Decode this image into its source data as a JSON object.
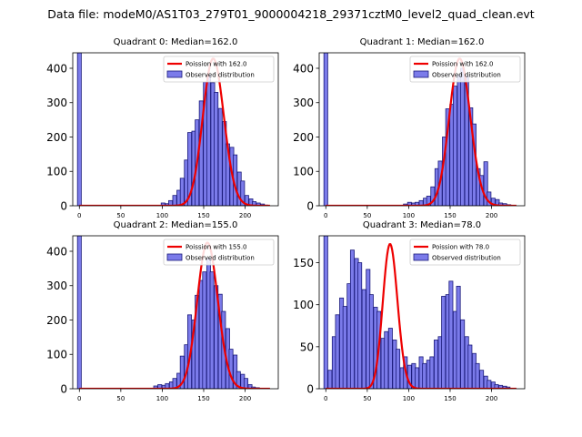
{
  "figure": {
    "suptitle": "Data file: modeM0/AS1T03_279T01_9000004218_29371cztM0_level2_quad_clean.evt"
  },
  "colors": {
    "bar_fill": "#7b7bea",
    "bar_edge": "#1a1a7a",
    "curve": "#ee0000"
  },
  "chart_data": [
    {
      "type": "bar",
      "title": "Quadrant 0: Median=162.0",
      "xticks": [
        0,
        50,
        100,
        150,
        200
      ],
      "xlim": [
        -8,
        240
      ],
      "ylim": [
        0,
        445
      ],
      "yticks": [
        0,
        100,
        200,
        300,
        400
      ],
      "bin_width": 4.6,
      "legend": {
        "curve_label": "Poission with 162.0",
        "bar_label": "Observed distribution",
        "position": "top-right"
      },
      "bins": [
        [
          0,
          445
        ],
        [
          101,
          8
        ],
        [
          106,
          6
        ],
        [
          110,
          15
        ],
        [
          115,
          30
        ],
        [
          120,
          45
        ],
        [
          124,
          80
        ],
        [
          129,
          133
        ],
        [
          133,
          213
        ],
        [
          138,
          217
        ],
        [
          142,
          250
        ],
        [
          147,
          305
        ],
        [
          152,
          360
        ],
        [
          156,
          380
        ],
        [
          161,
          358
        ],
        [
          165,
          330
        ],
        [
          170,
          283
        ],
        [
          175,
          245
        ],
        [
          179,
          180
        ],
        [
          184,
          170
        ],
        [
          188,
          148
        ],
        [
          193,
          98
        ],
        [
          197,
          72
        ],
        [
          202,
          30
        ],
        [
          207,
          20
        ],
        [
          211,
          12
        ],
        [
          216,
          8
        ],
        [
          221,
          5
        ],
        [
          225,
          2
        ]
      ],
      "poisson": {
        "lambda": 162.0,
        "peak": 428
      }
    },
    {
      "type": "bar",
      "title": "Quadrant 1: Median=162.0",
      "xticks": [
        0,
        50,
        100,
        150,
        200
      ],
      "xlim": [
        -8,
        240
      ],
      "ylim": [
        0,
        445
      ],
      "yticks": [
        0,
        100,
        200,
        300,
        400
      ],
      "bin_width": 4.6,
      "legend": {
        "curve_label": "Poission with 162.0",
        "bar_label": "Observed distribution",
        "position": "top-right"
      },
      "bins": [
        [
          0,
          445
        ],
        [
          96,
          5
        ],
        [
          101,
          10
        ],
        [
          106,
          8
        ],
        [
          110,
          10
        ],
        [
          115,
          15
        ],
        [
          120,
          22
        ],
        [
          124,
          28
        ],
        [
          129,
          55
        ],
        [
          134,
          108
        ],
        [
          138,
          130
        ],
        [
          143,
          200
        ],
        [
          147,
          282
        ],
        [
          152,
          295
        ],
        [
          156,
          348
        ],
        [
          161,
          380
        ],
        [
          165,
          400
        ],
        [
          170,
          378
        ],
        [
          175,
          285
        ],
        [
          179,
          238
        ],
        [
          184,
          108
        ],
        [
          188,
          88
        ],
        [
          193,
          128
        ],
        [
          197,
          40
        ],
        [
          202,
          22
        ],
        [
          207,
          18
        ],
        [
          211,
          8
        ],
        [
          216,
          6
        ],
        [
          221,
          3
        ]
      ],
      "poisson": {
        "lambda": 162.0,
        "peak": 428
      }
    },
    {
      "type": "bar",
      "title": "Quadrant 2: Median=155.0",
      "xticks": [
        0,
        50,
        100,
        150,
        200
      ],
      "xlim": [
        -8,
        240
      ],
      "ylim": [
        0,
        445
      ],
      "yticks": [
        0,
        100,
        200,
        300,
        400
      ],
      "bin_width": 4.6,
      "legend": {
        "curve_label": "Poission with 155.0",
        "bar_label": "Observed distribution",
        "position": "top-right"
      },
      "bins": [
        [
          0,
          445
        ],
        [
          92,
          8
        ],
        [
          97,
          12
        ],
        [
          102,
          10
        ],
        [
          106,
          15
        ],
        [
          111,
          20
        ],
        [
          115,
          30
        ],
        [
          120,
          45
        ],
        [
          124,
          95
        ],
        [
          129,
          128
        ],
        [
          133,
          215
        ],
        [
          138,
          200
        ],
        [
          142,
          272
        ],
        [
          147,
          315
        ],
        [
          151,
          340
        ],
        [
          156,
          380
        ],
        [
          160,
          340
        ],
        [
          165,
          300
        ],
        [
          170,
          275
        ],
        [
          174,
          225
        ],
        [
          179,
          175
        ],
        [
          183,
          115
        ],
        [
          188,
          98
        ],
        [
          192,
          50
        ],
        [
          197,
          42
        ],
        [
          201,
          30
        ],
        [
          206,
          12
        ],
        [
          210,
          5
        ],
        [
          215,
          3
        ]
      ],
      "poisson": {
        "lambda": 155.0,
        "peak": 425
      }
    },
    {
      "type": "bar",
      "title": "Quadrant 3: Median=78.0",
      "xticks": [
        0,
        50,
        100,
        150,
        200
      ],
      "xlim": [
        -8,
        240
      ],
      "ylim": [
        0,
        182
      ],
      "yticks": [
        0,
        50,
        100,
        150
      ],
      "bin_width": 4.6,
      "legend": {
        "curve_label": "Poission with 78.0",
        "bar_label": "Observed distribution",
        "position": "top-right"
      },
      "bins": [
        [
          0,
          182
        ],
        [
          5,
          22
        ],
        [
          10,
          62
        ],
        [
          14,
          88
        ],
        [
          19,
          108
        ],
        [
          23,
          98
        ],
        [
          28,
          125
        ],
        [
          32,
          165
        ],
        [
          37,
          155
        ],
        [
          41,
          150
        ],
        [
          46,
          118
        ],
        [
          51,
          142
        ],
        [
          55,
          112
        ],
        [
          60,
          97
        ],
        [
          64,
          92
        ],
        [
          69,
          60
        ],
        [
          73,
          68
        ],
        [
          78,
          72
        ],
        [
          83,
          58
        ],
        [
          87,
          47
        ],
        [
          92,
          25
        ],
        [
          96,
          38
        ],
        [
          101,
          28
        ],
        [
          106,
          30
        ],
        [
          110,
          25
        ],
        [
          115,
          38
        ],
        [
          119,
          30
        ],
        [
          124,
          34
        ],
        [
          128,
          38
        ],
        [
          133,
          58
        ],
        [
          138,
          62
        ],
        [
          142,
          110
        ],
        [
          147,
          112
        ],
        [
          151,
          128
        ],
        [
          156,
          92
        ],
        [
          160,
          122
        ],
        [
          165,
          82
        ],
        [
          170,
          62
        ],
        [
          174,
          52
        ],
        [
          179,
          42
        ],
        [
          183,
          30
        ],
        [
          188,
          22
        ],
        [
          193,
          15
        ],
        [
          197,
          10
        ],
        [
          202,
          8
        ],
        [
          206,
          5
        ],
        [
          211,
          4
        ],
        [
          216,
          3
        ],
        [
          220,
          2
        ]
      ],
      "poisson": {
        "lambda": 78.0,
        "peak": 172
      }
    }
  ]
}
